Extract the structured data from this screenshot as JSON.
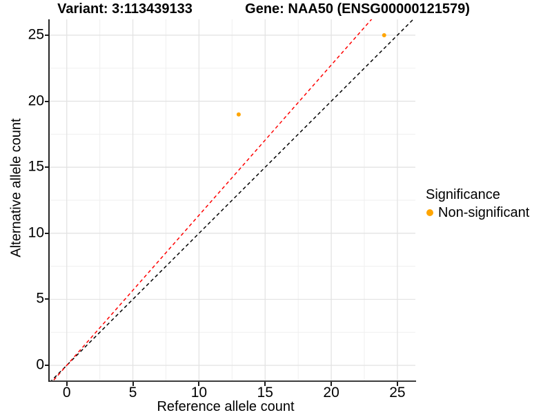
{
  "titles": {
    "left": "Variant: 3:113439133",
    "right": "Gene: NAA50 (ENSG00000121579)"
  },
  "axes": {
    "x_label": "Reference allele count",
    "y_label": "Alternative allele count"
  },
  "legend": {
    "title": "Significance",
    "items": [
      {
        "label": "Non-significant",
        "color": "#FFA500"
      }
    ]
  },
  "colors": {
    "point": "#FFA500",
    "identity_line": "#000000",
    "fit_line": "#FF0000",
    "grid_major": "#E3E3E3",
    "grid_minor": "#EFEFEF"
  },
  "chart_data": {
    "type": "scatter",
    "title": "Variant: 3:113439133  /  Gene: NAA50 (ENSG00000121579)",
    "xlabel": "Reference allele count",
    "ylabel": "Alternative allele count",
    "xlim": [
      -1.29,
      26.36
    ],
    "ylim": [
      -1.25,
      26.2
    ],
    "x_ticks": [
      0,
      5,
      10,
      15,
      20,
      25
    ],
    "y_ticks": [
      0,
      5,
      10,
      15,
      20,
      25
    ],
    "x_minor_ticks": [
      2.5,
      7.5,
      12.5,
      17.5,
      22.5
    ],
    "y_minor_ticks": [
      2.5,
      7.5,
      12.5,
      17.5,
      22.5
    ],
    "grid": "major+minor",
    "legend_position": "right",
    "series": [
      {
        "name": "Non-significant",
        "color": "#FFA500",
        "marker": "circle",
        "points": [
          [
            13,
            19
          ],
          [
            24,
            25
          ]
        ]
      }
    ],
    "reference_lines": [
      {
        "name": "identity",
        "slope": 1,
        "intercept": 0,
        "color": "#000000",
        "style": "dashed"
      },
      {
        "name": "fit",
        "slope": 1.137,
        "intercept": 0,
        "color": "#FF0000",
        "style": "dashed"
      }
    ]
  }
}
